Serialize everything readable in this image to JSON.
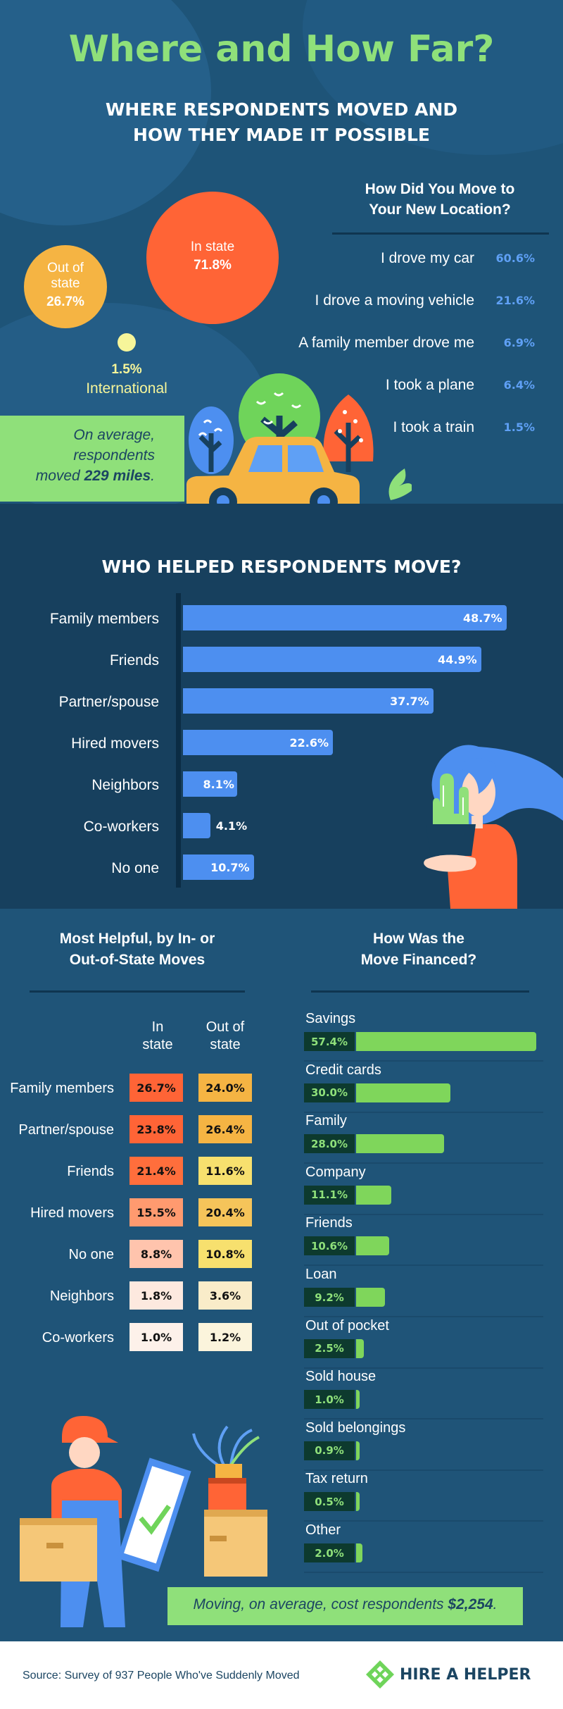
{
  "header": {
    "title": "Where and How Far?",
    "subtitle_line1": "WHERE RESPONDENTS MOVED AND",
    "subtitle_line2": "HOW THEY MADE IT POSSIBLE"
  },
  "destinations": {
    "in_state_label": "In state",
    "in_state_value": "71.8%",
    "out_state_label_1": "Out of",
    "out_state_label_2": "state",
    "out_state_value": "26.7%",
    "international_value": "1.5%",
    "international_label": "International"
  },
  "average_distance": {
    "line1": "On average,",
    "line2": "respondents",
    "line3_prefix": "moved ",
    "line3_value": "229 miles",
    "line3_suffix": "."
  },
  "move_method": {
    "heading_1": "How Did You Move to",
    "heading_2": "Your New Location?",
    "items": [
      {
        "label": "I drove my car",
        "value": "60.6%"
      },
      {
        "label": "I drove a moving vehicle",
        "value": "21.6%"
      },
      {
        "label": "A family member drove me",
        "value": "6.9%"
      },
      {
        "label": "I took a plane",
        "value": "6.4%"
      },
      {
        "label": "I took a train",
        "value": "1.5%"
      }
    ]
  },
  "who_helped": {
    "title": "WHO HELPED RESPONDENTS MOVE?",
    "items": [
      {
        "label": "Family members",
        "value": "48.7%",
        "pct": 48.7
      },
      {
        "label": "Friends",
        "value": "44.9%",
        "pct": 44.9
      },
      {
        "label": "Partner/spouse",
        "value": "37.7%",
        "pct": 37.7
      },
      {
        "label": "Hired movers",
        "value": "22.6%",
        "pct": 22.6
      },
      {
        "label": "Neighbors",
        "value": "8.1%",
        "pct": 8.1
      },
      {
        "label": "Co-workers",
        "value": "4.1%",
        "pct": 4.1
      },
      {
        "label": "No one",
        "value": "10.7%",
        "pct": 10.7
      }
    ]
  },
  "most_helpful": {
    "heading_1": "Most Helpful, by In- or",
    "heading_2": "Out-of-State Moves",
    "col_in_1": "In",
    "col_in_2": "state",
    "col_out_1": "Out of",
    "col_out_2": "state",
    "rows": [
      {
        "label": "Family members",
        "in": "26.7%",
        "out": "24.0%",
        "in_color": "#ff6436",
        "out_color": "#f5b443"
      },
      {
        "label": "Partner/spouse",
        "in": "23.8%",
        "out": "26.4%",
        "in_color": "#ff6436",
        "out_color": "#f5b443"
      },
      {
        "label": "Friends",
        "in": "21.4%",
        "out": "11.6%",
        "in_color": "#ff6e3c",
        "out_color": "#f7e06e"
      },
      {
        "label": "Hired movers",
        "in": "15.5%",
        "out": "20.4%",
        "in_color": "#ff9a6f",
        "out_color": "#f5c45a"
      },
      {
        "label": "No one",
        "in": "8.8%",
        "out": "10.8%",
        "in_color": "#ffc4ad",
        "out_color": "#f7e06e"
      },
      {
        "label": "Neighbors",
        "in": "1.8%",
        "out": "3.6%",
        "in_color": "#fde9df",
        "out_color": "#f9ecc9"
      },
      {
        "label": "Co-workers",
        "in": "1.0%",
        "out": "1.2%",
        "in_color": "#fdf1ea",
        "out_color": "#fbf4dc"
      }
    ]
  },
  "financing": {
    "heading_1": "How Was the",
    "heading_2": "Move Financed?",
    "items": [
      {
        "label": "Savings",
        "value": "57.4%",
        "pct": 57.4
      },
      {
        "label": "Credit cards",
        "value": "30.0%",
        "pct": 30.0
      },
      {
        "label": "Family",
        "value": "28.0%",
        "pct": 28.0
      },
      {
        "label": "Company",
        "value": "11.1%",
        "pct": 11.1
      },
      {
        "label": "Friends",
        "value": "10.6%",
        "pct": 10.6
      },
      {
        "label": "Loan",
        "value": "9.2%",
        "pct": 9.2
      },
      {
        "label": "Out of pocket",
        "value": "2.5%",
        "pct": 2.5
      },
      {
        "label": "Sold house",
        "value": "1.0%",
        "pct": 1.0
      },
      {
        "label": "Sold belongings",
        "value": "0.9%",
        "pct": 0.9
      },
      {
        "label": "Tax return",
        "value": "0.5%",
        "pct": 0.5
      },
      {
        "label": "Other",
        "value": "2.0%",
        "pct": 2.0
      }
    ]
  },
  "cost": {
    "prefix": "Moving, on average, cost respondents ",
    "value": "$2,254",
    "suffix": "."
  },
  "footer": {
    "source": "Source: Survey of 937 People Who've Suddenly Moved",
    "brand": "HIRE A HELPER"
  },
  "colors": {
    "title_green": "#8fe07a",
    "in_state_orange": "#ff6436",
    "out_state_yellow": "#f5b443",
    "bar_blue": "#4d8ff0",
    "finance_green": "#7fd65b"
  }
}
